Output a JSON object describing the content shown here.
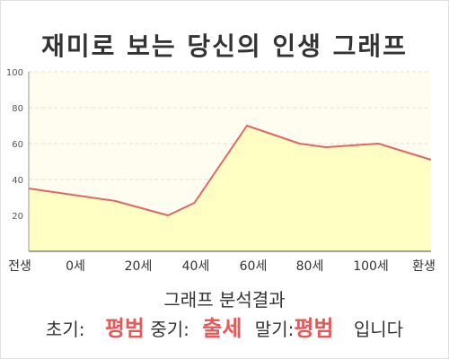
{
  "title": "재미로 보는 당신의 인생 그래프",
  "chart_data": {
    "type": "area",
    "title": "재미로 보는 당신의 인생 그래프",
    "xlabel": "",
    "ylabel": "",
    "categories": [
      "전생",
      "0세",
      "20세",
      "40세",
      "60세",
      "80세",
      "100세",
      "환생"
    ],
    "x": [
      -33,
      0,
      20,
      30,
      50,
      60,
      70,
      80,
      90,
      100,
      120
    ],
    "y": [
      35,
      28,
      20,
      27,
      70,
      65,
      60,
      58,
      59,
      60,
      51
    ],
    "ylim": [
      0,
      100
    ],
    "yticks": [
      100,
      80,
      60,
      40,
      20
    ],
    "grid": true,
    "colors": {
      "line": "#e06666",
      "fill": "#ffffc4",
      "background": "#fffdf0",
      "grid": "#dddddd"
    }
  },
  "result": {
    "heading": "그래프 분석결과",
    "early_label": "초기:",
    "early_value": "평범",
    "mid_label": "중기:",
    "mid_value": "출세",
    "late_label": "말기:",
    "late_value": "평범",
    "suffix": "입니다",
    "highlight_color": "#e85858"
  }
}
